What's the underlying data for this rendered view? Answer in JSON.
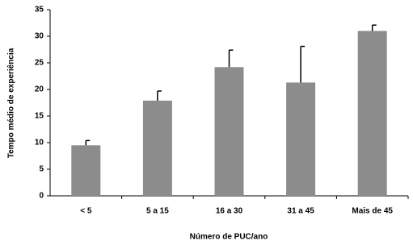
{
  "chart_data": {
    "type": "bar",
    "x_label": "Número de PUC/ano",
    "y_label": "Tempo médio de experiência",
    "categories": [
      "< 5",
      "5 a 15",
      "16 a 30",
      "31 a 45",
      "Mais de 45"
    ],
    "values": [
      9.5,
      17.9,
      24.2,
      21.3,
      31.0
    ],
    "errors": [
      0.9,
      1.8,
      3.2,
      6.8,
      1.1
    ],
    "color": "#8c8c8c",
    "ylim": [
      0,
      35
    ],
    "yticks": [
      0,
      5,
      10,
      15,
      20,
      25,
      30,
      35
    ],
    "grid": false
  }
}
